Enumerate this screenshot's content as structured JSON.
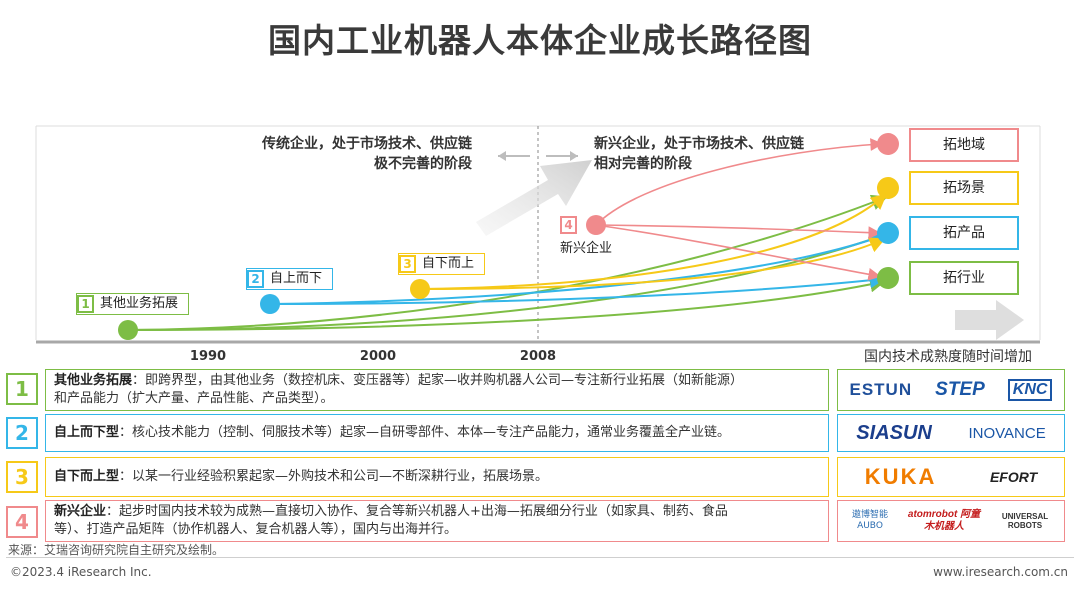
{
  "title": "国内工业机器人本体企业成长路径图",
  "stages": {
    "left": [
      "传统企业，处于市场技术、供应链",
      "极不完善的阶段"
    ],
    "right": [
      "新兴企业，处于市场技术、供应链",
      "相对完善的阶段"
    ]
  },
  "timeline": {
    "years": [
      "1990",
      "2000",
      "2008"
    ],
    "axis_label": "国内技术成熟度随时间增加"
  },
  "paths": [
    {
      "num": "1",
      "label": "其他业务拓展",
      "color": "#7dbd45"
    },
    {
      "num": "2",
      "label": "自上而下",
      "color": "#34b6e8"
    },
    {
      "num": "3",
      "label": "自下而上",
      "color": "#f6c918"
    },
    {
      "num": "4",
      "label": "新兴企业",
      "color": "#f08a8c"
    }
  ],
  "outcomes": [
    {
      "label": "拓地域",
      "color": "#f08a8c"
    },
    {
      "label": "拓场景",
      "color": "#f6c918"
    },
    {
      "label": "拓产品",
      "color": "#34b6e8"
    },
    {
      "label": "拓行业",
      "color": "#7dbd45"
    }
  ],
  "rows": [
    {
      "num": "1",
      "color": "#7dbd45",
      "head": "其他业务拓展",
      "text_line1": "：即跨界型，由其他业务（数控机床、变压器等）起家—收并购机器人公司—专注新行业拓展（如新能源）",
      "text_line2": "和产品能力（扩大产量、产品性能、产品类型）。",
      "logos": [
        "ESTUN",
        "STEP",
        "KNC"
      ]
    },
    {
      "num": "2",
      "color": "#34b6e8",
      "head": "自上而下型",
      "text_line1": "：核心技术能力（控制、伺服技术等）起家—自研零部件、本体—专注产品能力，通常业务覆盖全产业链。",
      "text_line2": "",
      "logos": [
        "SIASUN",
        "INOVANCE"
      ]
    },
    {
      "num": "3",
      "color": "#f6c918",
      "head": "自下而上型",
      "text_line1": "：以某一行业经验积累起家—外购技术和公司—不断深耕行业，拓展场景。",
      "text_line2": "",
      "logos": [
        "KUKA",
        "EFORT"
      ]
    },
    {
      "num": "4",
      "color": "#f08a8c",
      "head": "新兴企业",
      "text_line1": "：起步时国内技术较为成熟—直接切入协作、复合等新兴机器人+出海—拓展细分行业（如家具、制药、食品",
      "text_line2": "等）、打造产品矩阵（协作机器人、复合机器人等），国内与出海并行。",
      "logos": [
        "遨博智能 AUBO",
        "atomrobot 阿童木机器人",
        "UNIVERSAL ROBOTS"
      ]
    }
  ],
  "footer": {
    "source": "来源：艾瑞咨询研究院自主研究及绘制。",
    "copyright": "©2023.4 iResearch Inc.",
    "website": "www.iresearch.com.cn"
  }
}
